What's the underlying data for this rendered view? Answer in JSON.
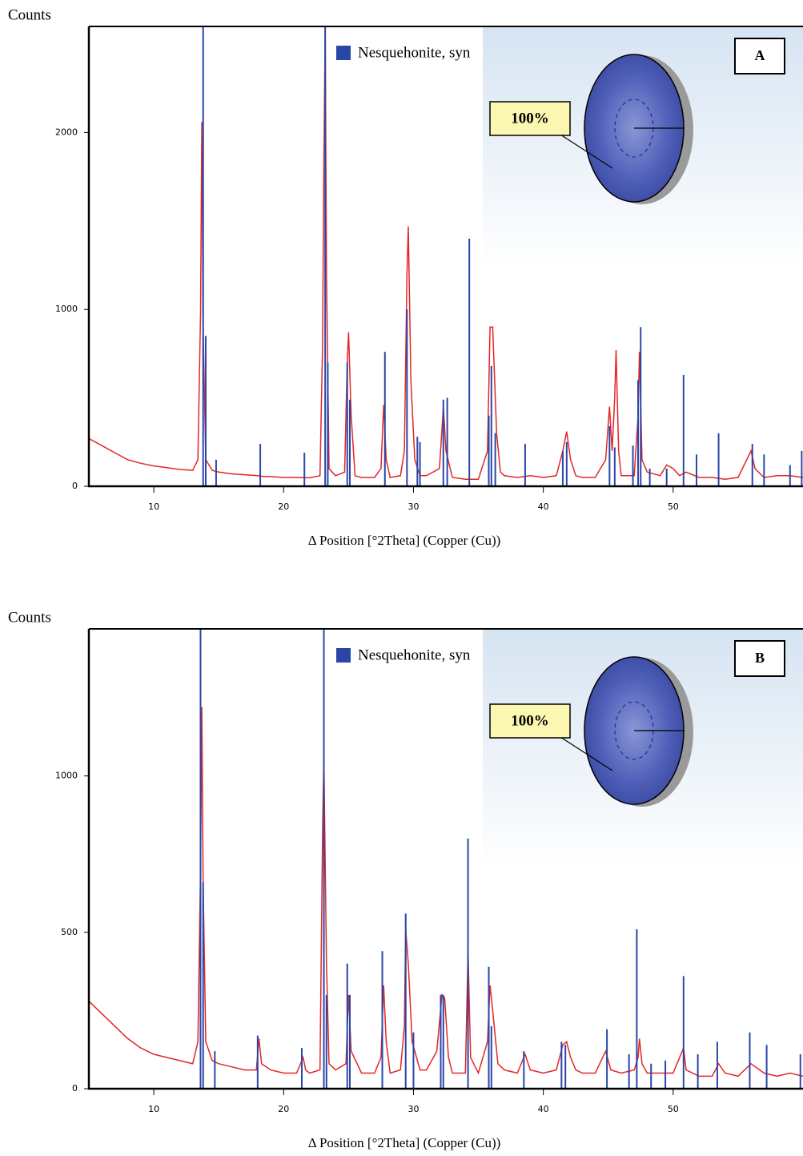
{
  "chart_data": [
    {
      "type": "line",
      "ylabel": "Counts",
      "xlabel": "Δ Position [°2Theta] (Copper (Cu))",
      "panel_label": "A",
      "annotation": "100%",
      "xlim": [
        5,
        60
      ],
      "ylim": [
        0,
        2600
      ],
      "xticks": [
        10,
        20,
        30,
        40,
        50
      ],
      "yticks": [
        0,
        1000,
        2000
      ],
      "x": [
        5,
        6,
        7,
        8,
        9,
        10,
        11,
        12,
        13,
        13.4,
        13.6,
        13.7,
        13.8,
        14.0,
        14.5,
        15,
        16,
        17,
        18,
        18.5,
        19,
        20,
        21,
        22,
        22.8,
        23.0,
        23.1,
        23.2,
        23.3,
        23.5,
        24,
        24.7,
        24.9,
        25.0,
        25.2,
        25.5,
        26,
        27,
        27.5,
        27.7,
        27.9,
        28.2,
        29,
        29.3,
        29.5,
        29.6,
        29.8,
        30.1,
        30.5,
        31,
        32,
        32.3,
        32.5,
        33,
        34,
        35,
        35.7,
        35.9,
        36.1,
        36.4,
        36.7,
        37,
        38,
        39,
        40,
        41,
        41.5,
        41.8,
        42.1,
        42.5,
        43,
        44,
        44.8,
        45.1,
        45.3,
        45.5,
        45.6,
        45.8,
        46,
        47,
        47.3,
        47.4,
        47.6,
        48,
        49,
        49.5,
        50,
        50.5,
        51,
        52,
        53,
        54,
        55,
        56,
        56.3,
        57,
        58,
        59,
        60
      ],
      "series": [
        {
          "color": "#e32626",
          "values": [
            270,
            230,
            190,
            150,
            130,
            115,
            105,
            95,
            90,
            150,
            980,
            2060,
            900,
            150,
            90,
            80,
            70,
            65,
            60,
            55,
            55,
            50,
            50,
            48,
            60,
            800,
            1800,
            2600,
            1200,
            100,
            60,
            80,
            700,
            870,
            400,
            60,
            50,
            50,
            100,
            460,
            150,
            50,
            60,
            200,
            1200,
            1470,
            600,
            150,
            60,
            60,
            100,
            450,
            200,
            50,
            40,
            40,
            200,
            900,
            900,
            300,
            80,
            60,
            50,
            60,
            50,
            60,
            200,
            310,
            150,
            60,
            50,
            50,
            150,
            450,
            200,
            500,
            770,
            200,
            60,
            60,
            400,
            760,
            150,
            80,
            60,
            120,
            100,
            60,
            80,
            50,
            50,
            40,
            50,
            200,
            100,
            50,
            60,
            60,
            50
          ]
        },
        {
          "type": "stick",
          "name": "Nesquehonite, syn",
          "color": "#2a46a8",
          "x": [
            13.8,
            14.0,
            14.8,
            18.2,
            21.6,
            23.2,
            23.4,
            24.9,
            25.1,
            27.8,
            29.5,
            30.3,
            30.5,
            32.3,
            32.6,
            34.3,
            35.8,
            36.0,
            36.3,
            38.6,
            41.5,
            41.8,
            45.1,
            45.5,
            46.9,
            47.3,
            47.5,
            48.2,
            49.5,
            50.8,
            51.8,
            53.5,
            56.1,
            57,
            59,
            59.9
          ],
          "values": [
            2600,
            850,
            150,
            240,
            190,
            2600,
            700,
            700,
            490,
            760,
            1000,
            280,
            250,
            490,
            500,
            1400,
            400,
            680,
            300,
            240,
            200,
            250,
            340,
            220,
            230,
            600,
            900,
            100,
            100,
            630,
            180,
            300,
            240,
            180,
            120,
            200
          ]
        }
      ]
    },
    {
      "type": "line",
      "ylabel": "Counts",
      "xlabel": "Δ Position [°2Theta] (Copper (Cu))",
      "panel_label": "B",
      "annotation": "100%",
      "xlim": [
        5,
        60
      ],
      "ylim": [
        0,
        1470
      ],
      "xticks": [
        10,
        20,
        30,
        40,
        50
      ],
      "yticks": [
        0,
        500,
        1000
      ],
      "x": [
        5,
        6,
        7,
        8,
        9,
        10,
        11,
        12,
        13,
        13.4,
        13.6,
        13.7,
        13.8,
        14.0,
        14.5,
        15,
        16,
        17,
        17.9,
        18.1,
        18.3,
        19,
        20,
        21,
        21.5,
        21.7,
        22,
        22.8,
        23.0,
        23.1,
        23.3,
        23.5,
        24,
        24.8,
        25.0,
        25.2,
        26,
        27,
        27.5,
        27.7,
        27.9,
        28.2,
        29,
        29.3,
        29.4,
        29.6,
        29.9,
        30.1,
        30.5,
        31,
        31.8,
        32.2,
        32.4,
        32.7,
        33,
        34,
        34.2,
        34.4,
        35,
        35.7,
        35.9,
        36.1,
        36.5,
        37,
        38,
        38.6,
        39,
        40,
        41,
        41.5,
        41.8,
        42.1,
        42.5,
        43,
        44,
        44.8,
        45.2,
        46,
        47,
        47.3,
        47.4,
        47.6,
        48,
        49,
        50,
        50.8,
        51,
        52,
        53,
        53.5,
        54,
        55,
        56,
        57,
        58,
        59,
        60
      ],
      "series": [
        {
          "color": "#e32626",
          "values": [
            280,
            240,
            200,
            160,
            130,
            110,
            100,
            90,
            80,
            150,
            700,
            1220,
            660,
            150,
            90,
            80,
            70,
            60,
            60,
            160,
            80,
            60,
            50,
            50,
            100,
            60,
            50,
            60,
            820,
            1060,
            400,
            80,
            60,
            80,
            300,
            120,
            50,
            50,
            100,
            330,
            150,
            50,
            60,
            200,
            510,
            400,
            150,
            120,
            60,
            60,
            120,
            300,
            290,
            100,
            50,
            50,
            440,
            100,
            50,
            150,
            330,
            250,
            80,
            60,
            50,
            110,
            60,
            50,
            60,
            140,
            150,
            100,
            60,
            50,
            50,
            120,
            60,
            50,
            60,
            100,
            160,
            80,
            50,
            50,
            50,
            130,
            60,
            40,
            40,
            80,
            50,
            40,
            80,
            50,
            40,
            50,
            40
          ]
        },
        {
          "type": "stick",
          "name": "Nesquehonite, syn",
          "color": "#2a46a8",
          "x": [
            13.6,
            13.8,
            14.7,
            18.0,
            21.4,
            23.1,
            23.3,
            24.9,
            25.1,
            27.6,
            29.4,
            30.0,
            32.1,
            32.3,
            34.2,
            35.8,
            36.0,
            38.5,
            41.4,
            41.7,
            44.9,
            46.6,
            47.2,
            48.3,
            49.4,
            50.8,
            51.9,
            53.4,
            55.9,
            57.2,
            59.8
          ],
          "values": [
            1470,
            660,
            120,
            170,
            130,
            1470,
            300,
            400,
            300,
            440,
            560,
            180,
            300,
            300,
            800,
            390,
            200,
            120,
            150,
            140,
            190,
            110,
            510,
            80,
            90,
            360,
            110,
            150,
            180,
            140,
            110
          ]
        }
      ]
    }
  ]
}
